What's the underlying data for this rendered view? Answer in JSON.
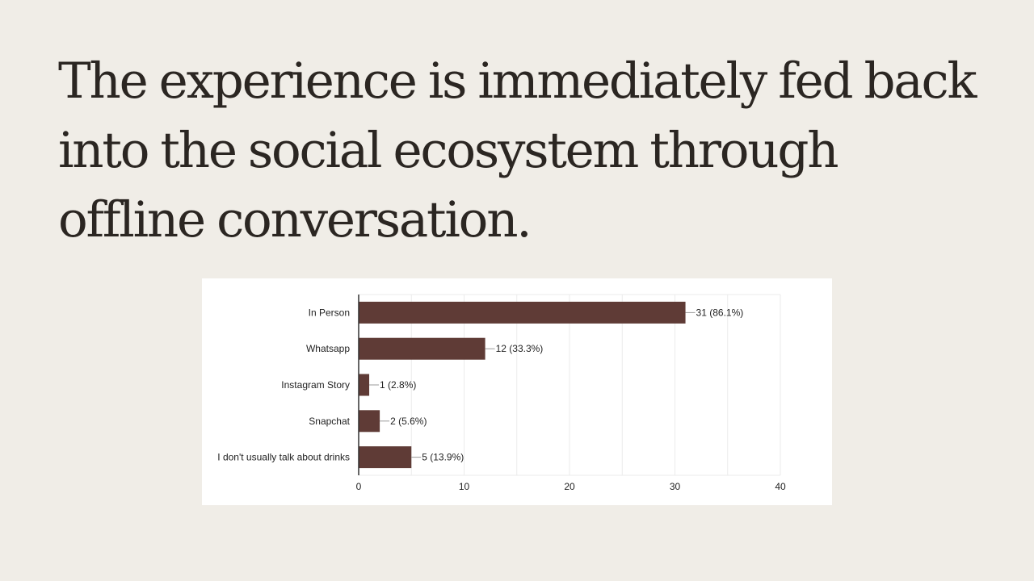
{
  "slide": {
    "title": "The experience is immediately fed back into the social ecosystem through offline conversation."
  },
  "colors": {
    "background": "#f0ede7",
    "title": "#2b2622",
    "bar": "#5f3b36",
    "grid": "#ebebeb",
    "axis": "#333333"
  },
  "chart_data": {
    "type": "bar",
    "orientation": "horizontal",
    "title": "",
    "xlabel": "",
    "ylabel": "",
    "categories": [
      "In Person",
      "Whatsapp",
      "Instagram Story",
      "Snapchat",
      "I don't usually talk about drinks"
    ],
    "values": [
      31,
      12,
      1,
      2,
      5
    ],
    "value_labels": [
      "31 (86.1%)",
      "12 (33.3%)",
      "1 (2.8%)",
      "2 (5.6%)",
      "5 (13.9%)"
    ],
    "xlim": [
      0,
      40
    ],
    "xticks": [
      0,
      10,
      20,
      30,
      40
    ],
    "grid": true,
    "legend": "none"
  }
}
